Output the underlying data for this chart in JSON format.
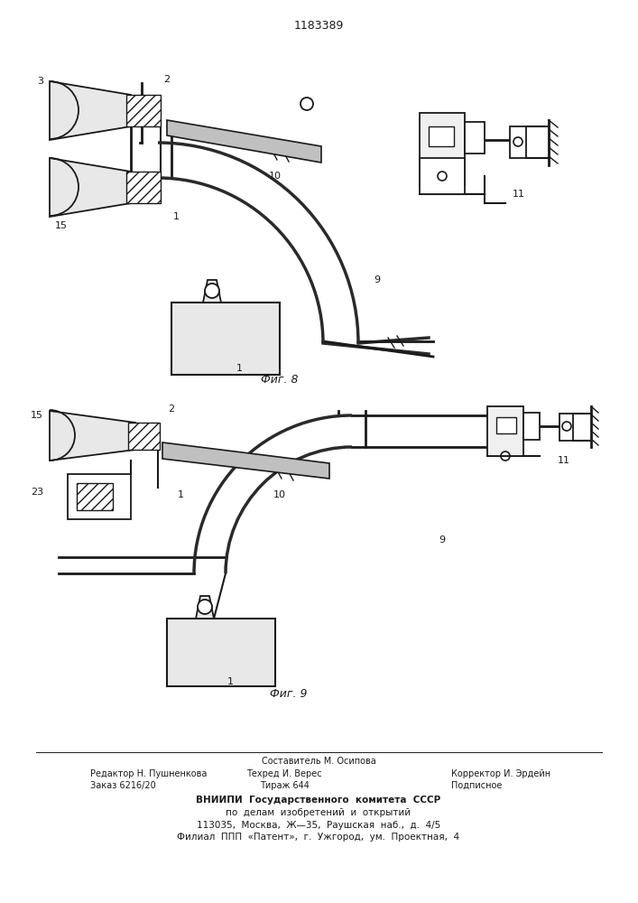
{
  "patent_number": "1183389",
  "fig8_caption": "Фиг. 8",
  "fig9_caption": "Фиг. 9",
  "footer_line1": "Составитель М. Осипова",
  "footer_line2a": "Редактор Н. Пушненкова",
  "footer_line2b": "Техред И. Верес",
  "footer_line2c": "Корректор И. Эрдейн",
  "footer_line3a": "Заказ 6216/20",
  "footer_line3b": "Тираж 644",
  "footer_line3c": "Подписное",
  "footer_vnipi": "ВНИИПИ  Государственного  комитета  СССР",
  "footer_po": "по  делам  изобретений  и  открытий",
  "footer_addr1": "113035,  Москва,  Ж—35,  Раушская  наб.,  д.  4/5",
  "footer_addr2": "Филиал  ППП  «Патент»,  г.  Ужгород,  ум.  Проектная,  4",
  "bg_color": "#ffffff",
  "line_color": "#1a1a1a"
}
